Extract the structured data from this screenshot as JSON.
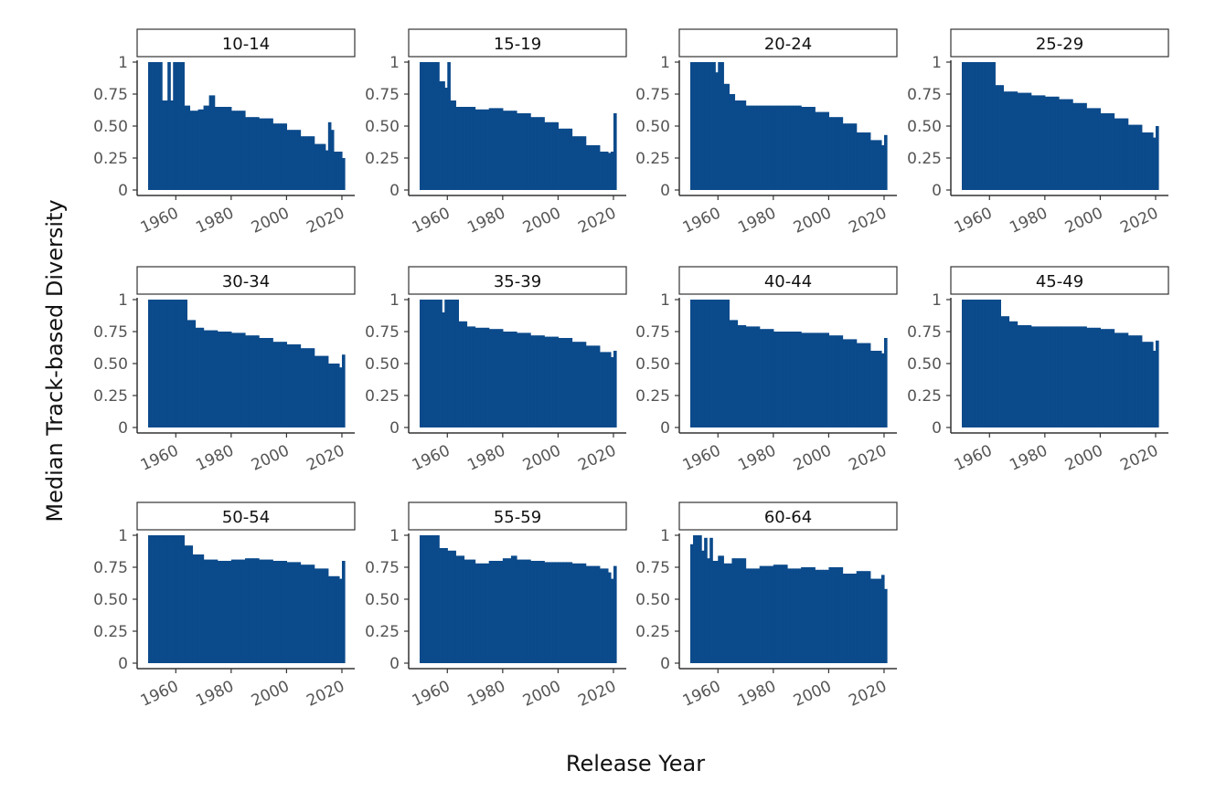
{
  "chart_data": {
    "type": "bar",
    "facet_by": "age group",
    "xlabel": "Release Year",
    "ylabel": "Median Track-based Diversity",
    "xlim": [
      1950,
      2021
    ],
    "ylim": [
      0,
      1
    ],
    "x_ticks": [
      1960,
      1980,
      2000,
      2020
    ],
    "y_ticks": [
      0,
      0.25,
      0.5,
      0.75,
      1
    ],
    "y_tick_labels": [
      "0",
      "0.25",
      "0.50",
      "0.75",
      "1"
    ],
    "bar_color": "#0B4A8B",
    "grid": false,
    "panels": [
      {
        "label": "10-14",
        "points": [
          [
            1950,
            1.0
          ],
          [
            1954,
            1.0
          ],
          [
            1955,
            0.7
          ],
          [
            1957,
            1.0
          ],
          [
            1958,
            0.7
          ],
          [
            1959,
            1.0
          ],
          [
            1961,
            1.0
          ],
          [
            1963,
            0.66
          ],
          [
            1965,
            0.62
          ],
          [
            1968,
            0.63
          ],
          [
            1970,
            0.66
          ],
          [
            1972,
            0.74
          ],
          [
            1974,
            0.65
          ],
          [
            1980,
            0.62
          ],
          [
            1985,
            0.57
          ],
          [
            1990,
            0.56
          ],
          [
            1995,
            0.52
          ],
          [
            2000,
            0.47
          ],
          [
            2005,
            0.42
          ],
          [
            2010,
            0.36
          ],
          [
            2014,
            0.31
          ],
          [
            2015,
            0.53
          ],
          [
            2016,
            0.47
          ],
          [
            2017,
            0.3
          ],
          [
            2020,
            0.25
          ]
        ]
      },
      {
        "label": "15-19",
        "points": [
          [
            1950,
            1.0
          ],
          [
            1955,
            1.0
          ],
          [
            1957,
            0.85
          ],
          [
            1959,
            0.8
          ],
          [
            1960,
            1.0
          ],
          [
            1961,
            0.7
          ],
          [
            1963,
            0.65
          ],
          [
            1970,
            0.63
          ],
          [
            1975,
            0.64
          ],
          [
            1980,
            0.62
          ],
          [
            1985,
            0.6
          ],
          [
            1990,
            0.57
          ],
          [
            1995,
            0.53
          ],
          [
            2000,
            0.48
          ],
          [
            2005,
            0.42
          ],
          [
            2010,
            0.35
          ],
          [
            2015,
            0.3
          ],
          [
            2018,
            0.29
          ],
          [
            2019,
            0.3
          ],
          [
            2020,
            0.6
          ]
        ]
      },
      {
        "label": "20-24",
        "points": [
          [
            1950,
            1.0
          ],
          [
            1957,
            1.0
          ],
          [
            1959,
            0.92
          ],
          [
            1960,
            1.0
          ],
          [
            1962,
            0.83
          ],
          [
            1964,
            0.75
          ],
          [
            1966,
            0.7
          ],
          [
            1970,
            0.66
          ],
          [
            1980,
            0.66
          ],
          [
            1985,
            0.66
          ],
          [
            1990,
            0.65
          ],
          [
            1995,
            0.61
          ],
          [
            2000,
            0.57
          ],
          [
            2005,
            0.52
          ],
          [
            2010,
            0.45
          ],
          [
            2015,
            0.39
          ],
          [
            2019,
            0.35
          ],
          [
            2020,
            0.43
          ]
        ]
      },
      {
        "label": "25-29",
        "points": [
          [
            1950,
            1.0
          ],
          [
            1960,
            1.0
          ],
          [
            1962,
            0.82
          ],
          [
            1965,
            0.77
          ],
          [
            1970,
            0.76
          ],
          [
            1975,
            0.74
          ],
          [
            1980,
            0.73
          ],
          [
            1985,
            0.71
          ],
          [
            1990,
            0.68
          ],
          [
            1995,
            0.64
          ],
          [
            2000,
            0.6
          ],
          [
            2005,
            0.56
          ],
          [
            2010,
            0.51
          ],
          [
            2015,
            0.45
          ],
          [
            2019,
            0.41
          ],
          [
            2020,
            0.5
          ]
        ]
      },
      {
        "label": "30-34",
        "points": [
          [
            1950,
            1.0
          ],
          [
            1962,
            1.0
          ],
          [
            1964,
            0.84
          ],
          [
            1967,
            0.78
          ],
          [
            1970,
            0.76
          ],
          [
            1975,
            0.75
          ],
          [
            1980,
            0.74
          ],
          [
            1985,
            0.72
          ],
          [
            1990,
            0.7
          ],
          [
            1995,
            0.67
          ],
          [
            2000,
            0.65
          ],
          [
            2005,
            0.62
          ],
          [
            2010,
            0.56
          ],
          [
            2015,
            0.5
          ],
          [
            2019,
            0.47
          ],
          [
            2020,
            0.57
          ]
        ]
      },
      {
        "label": "35-39",
        "points": [
          [
            1950,
            1.0
          ],
          [
            1957,
            1.0
          ],
          [
            1958,
            0.9
          ],
          [
            1959,
            1.0
          ],
          [
            1962,
            1.0
          ],
          [
            1964,
            0.83
          ],
          [
            1967,
            0.79
          ],
          [
            1970,
            0.78
          ],
          [
            1975,
            0.77
          ],
          [
            1980,
            0.75
          ],
          [
            1985,
            0.74
          ],
          [
            1990,
            0.72
          ],
          [
            1995,
            0.71
          ],
          [
            2000,
            0.7
          ],
          [
            2005,
            0.67
          ],
          [
            2010,
            0.64
          ],
          [
            2015,
            0.59
          ],
          [
            2019,
            0.55
          ],
          [
            2020,
            0.6
          ]
        ]
      },
      {
        "label": "40-44",
        "points": [
          [
            1950,
            1.0
          ],
          [
            1962,
            1.0
          ],
          [
            1964,
            0.84
          ],
          [
            1967,
            0.8
          ],
          [
            1970,
            0.79
          ],
          [
            1975,
            0.77
          ],
          [
            1980,
            0.75
          ],
          [
            1985,
            0.75
          ],
          [
            1990,
            0.74
          ],
          [
            1995,
            0.74
          ],
          [
            2000,
            0.72
          ],
          [
            2005,
            0.69
          ],
          [
            2010,
            0.66
          ],
          [
            2015,
            0.6
          ],
          [
            2019,
            0.58
          ],
          [
            2020,
            0.7
          ]
        ]
      },
      {
        "label": "45-49",
        "points": [
          [
            1950,
            1.0
          ],
          [
            1962,
            1.0
          ],
          [
            1964,
            0.87
          ],
          [
            1967,
            0.83
          ],
          [
            1970,
            0.8
          ],
          [
            1975,
            0.79
          ],
          [
            1980,
            0.79
          ],
          [
            1985,
            0.79
          ],
          [
            1990,
            0.79
          ],
          [
            1995,
            0.78
          ],
          [
            2000,
            0.77
          ],
          [
            2005,
            0.74
          ],
          [
            2010,
            0.72
          ],
          [
            2015,
            0.67
          ],
          [
            2019,
            0.6
          ],
          [
            2020,
            0.68
          ]
        ]
      },
      {
        "label": "50-54",
        "points": [
          [
            1950,
            1.0
          ],
          [
            1961,
            1.0
          ],
          [
            1963,
            0.92
          ],
          [
            1966,
            0.85
          ],
          [
            1970,
            0.81
          ],
          [
            1975,
            0.8
          ],
          [
            1980,
            0.81
          ],
          [
            1985,
            0.82
          ],
          [
            1990,
            0.81
          ],
          [
            1995,
            0.8
          ],
          [
            2000,
            0.79
          ],
          [
            2005,
            0.77
          ],
          [
            2010,
            0.74
          ],
          [
            2015,
            0.68
          ],
          [
            2019,
            0.66
          ],
          [
            2020,
            0.8
          ]
        ]
      },
      {
        "label": "55-59",
        "points": [
          [
            1950,
            1.0
          ],
          [
            1956,
            1.0
          ],
          [
            1957,
            0.9
          ],
          [
            1960,
            0.88
          ],
          [
            1963,
            0.84
          ],
          [
            1966,
            0.81
          ],
          [
            1970,
            0.78
          ],
          [
            1975,
            0.8
          ],
          [
            1980,
            0.82
          ],
          [
            1983,
            0.84
          ],
          [
            1985,
            0.81
          ],
          [
            1990,
            0.8
          ],
          [
            1995,
            0.79
          ],
          [
            2000,
            0.79
          ],
          [
            2005,
            0.78
          ],
          [
            2010,
            0.76
          ],
          [
            2015,
            0.74
          ],
          [
            2018,
            0.71
          ],
          [
            2019,
            0.66
          ],
          [
            2020,
            0.76
          ]
        ]
      },
      {
        "label": "60-64",
        "points": [
          [
            1950,
            0.93
          ],
          [
            1951,
            1.0
          ],
          [
            1953,
            1.0
          ],
          [
            1954,
            0.88
          ],
          [
            1955,
            0.98
          ],
          [
            1956,
            0.82
          ],
          [
            1957,
            0.98
          ],
          [
            1958,
            0.8
          ],
          [
            1960,
            0.84
          ],
          [
            1962,
            0.78
          ],
          [
            1965,
            0.82
          ],
          [
            1970,
            0.74
          ],
          [
            1975,
            0.76
          ],
          [
            1980,
            0.77
          ],
          [
            1985,
            0.74
          ],
          [
            1990,
            0.75
          ],
          [
            1995,
            0.73
          ],
          [
            2000,
            0.75
          ],
          [
            2005,
            0.7
          ],
          [
            2010,
            0.72
          ],
          [
            2015,
            0.66
          ],
          [
            2019,
            0.69
          ],
          [
            2020,
            0.58
          ]
        ]
      }
    ]
  }
}
